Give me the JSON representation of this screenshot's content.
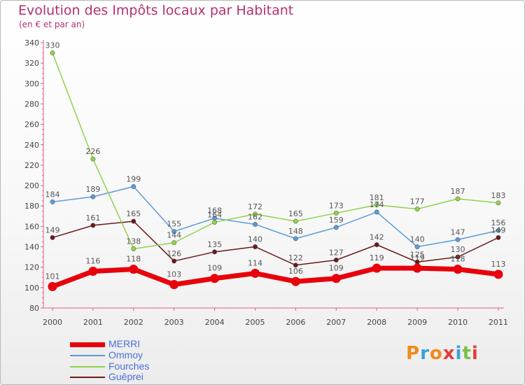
{
  "title": "Evolution des Impôts locaux par Habitant",
  "subtitle": "(en € et par an)",
  "logo": {
    "text": "Proxiti",
    "colors": [
      "#f08a1c",
      "#3aa0d8",
      "#f08a1c",
      "#e83a3a",
      "#3aa0d8",
      "#7bc043",
      "#e83a3a"
    ]
  },
  "chart_data": {
    "type": "line",
    "x": [
      "2000",
      "2001",
      "2002",
      "2003",
      "2004",
      "2005",
      "2006",
      "2007",
      "2008",
      "2009",
      "2010",
      "2011"
    ],
    "ylim": [
      80,
      340
    ],
    "yticks": [
      80,
      100,
      120,
      140,
      160,
      180,
      200,
      220,
      240,
      260,
      280,
      300,
      320,
      340
    ],
    "grid": false,
    "legend_placement": "bottom-left",
    "series": [
      {
        "name": "MERRI",
        "color": "#e8000b",
        "width": 7,
        "values": [
          101,
          116,
          118,
          103,
          109,
          114,
          106,
          109,
          119,
          119,
          118,
          113
        ],
        "labels": [
          "101",
          "116",
          "118",
          "103",
          "109",
          "114",
          "106",
          "109",
          "119",
          "119",
          "118",
          "113"
        ]
      },
      {
        "name": "Ommoy",
        "color": "#5a9bd8",
        "width": 1.5,
        "values": [
          184,
          189,
          199,
          155,
          168,
          162,
          148,
          159,
          174,
          140,
          147,
          156
        ],
        "labels": [
          "184",
          "189",
          "199",
          "155",
          "168",
          "162",
          "148",
          "159",
          "174",
          "140",
          "147",
          "156"
        ]
      },
      {
        "name": "Fourches",
        "color": "#8fd34a",
        "width": 1.5,
        "values": [
          330,
          226,
          138,
          144,
          164,
          172,
          165,
          173,
          181,
          177,
          187,
          183
        ],
        "labels": [
          "330",
          "226",
          "138",
          "144",
          "164",
          "172",
          "165",
          "173",
          "181",
          "177",
          "187",
          "183"
        ]
      },
      {
        "name": "Guêprei",
        "color": "#6b1a1a",
        "width": 1.5,
        "values": [
          149,
          161,
          165,
          126,
          135,
          140,
          122,
          127,
          142,
          125,
          130,
          149
        ],
        "labels": [
          "149",
          "161",
          "165",
          "126",
          "135",
          "140",
          "122",
          "127",
          "142",
          "125",
          "130",
          "149"
        ]
      }
    ]
  }
}
